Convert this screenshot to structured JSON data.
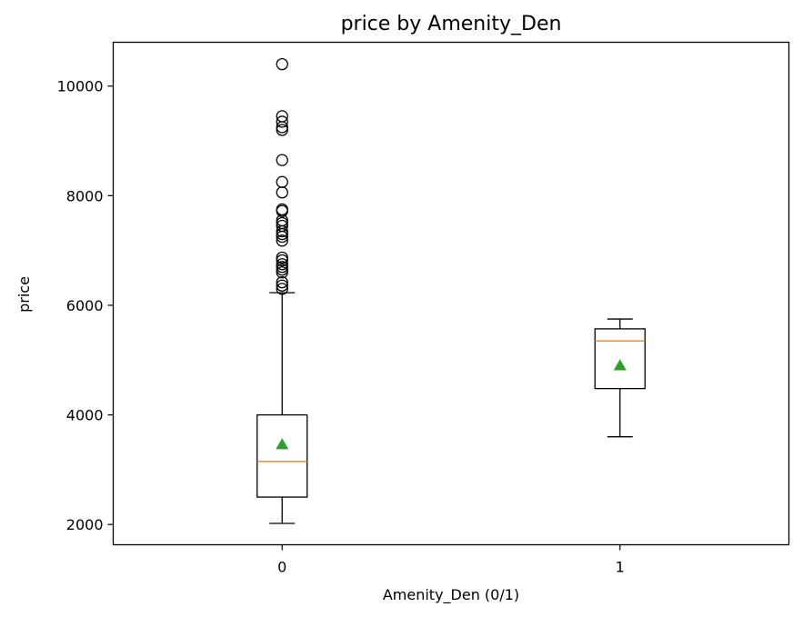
{
  "chart_data": {
    "type": "box",
    "title": "price by Amenity_Den",
    "xlabel": "Amenity_Den (0/1)",
    "ylabel": "price",
    "categories": [
      "0",
      "1"
    ],
    "ylim": [
      1630,
      10800
    ],
    "yticks": [
      2000,
      4000,
      6000,
      8000,
      10000
    ],
    "grid": false,
    "colors": {
      "box": "#000000",
      "median": "#ff7f0e",
      "mean": "#2ca02c",
      "flier": "#000000"
    },
    "boxes": [
      {
        "category": "0",
        "whisker_low": 2020,
        "q1": 2500,
        "median": 3150,
        "mean": 3460,
        "q3": 4000,
        "whisker_high": 6230,
        "fliers": [
          6300,
          6360,
          6420,
          6600,
          6650,
          6700,
          6750,
          6820,
          6870,
          7180,
          7250,
          7300,
          7350,
          7450,
          7500,
          7550,
          7720,
          7750,
          8060,
          8250,
          8650,
          9200,
          9250,
          9350,
          9450,
          10400
        ]
      },
      {
        "category": "1",
        "whisker_low": 3600,
        "q1": 4480,
        "median": 5350,
        "mean": 4900,
        "q3": 5570,
        "whisker_high": 5750,
        "fliers": []
      }
    ]
  }
}
